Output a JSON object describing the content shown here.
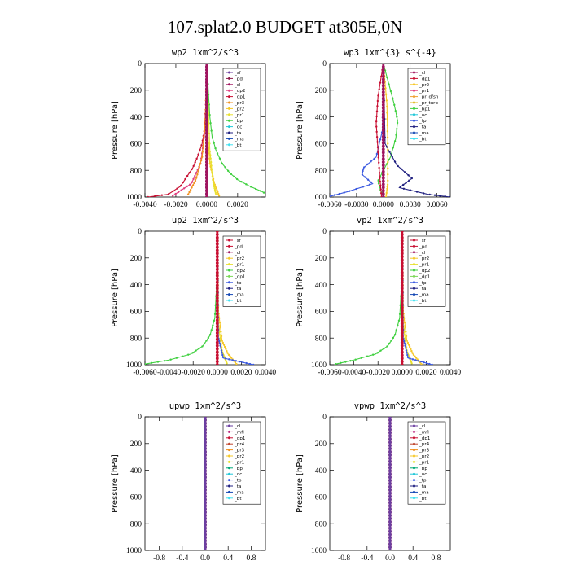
{
  "figure_title": "107.splat2.0  BUDGET at305E,0N",
  "colors": {
    "sf": "#6b3fa0",
    "pd": "#8b1a4a",
    "cl": "#a0145f",
    "dp2": "#e04080",
    "dp1": "#c80f32",
    "pr3": "#f09020",
    "pr2": "#f6c828",
    "pr1": "#e8e030",
    "bp": "#00a878",
    "bp1": "#7cd858",
    "oc": "#20c8d8",
    "tp": "#3c5ae0",
    "ta": "#202080",
    "ma": "#1448b4",
    "bt": "#40e0f0",
    "mfl": "#b8207a",
    "pr4": "#c04830",
    "dp2g": "#40d040",
    "pr_dfsn": "#f0a030",
    "pr_turb": "#e0b820"
  },
  "chart_data": [
    {
      "id": "wp2",
      "type": "line",
      "title": "wp2  1xm^2/s^3",
      "ylabel": "Pressure [hPa]",
      "xlim": [
        -0.004,
        0.0038
      ],
      "ylim": [
        1000,
        0
      ],
      "xticks": [
        -0.004,
        -0.002,
        0.0,
        0.002
      ],
      "xtick_labels": [
        "-0.0040",
        "-0.0020",
        "0.0000",
        "0.0020"
      ],
      "yticks": [
        0,
        200,
        400,
        600,
        800,
        1000
      ],
      "ytick_labels": [
        "0",
        "200",
        "400",
        "600",
        "800",
        "1000"
      ],
      "legend": [
        "_sf",
        "_pd",
        "_cl",
        "_dp2",
        "_dp1",
        "_pr3",
        "_pr2",
        "_pr1",
        "_bp",
        "_oc",
        "_ta",
        "_ma",
        "_bt"
      ],
      "legend_colors": [
        "sf",
        "pd",
        "cl",
        "dp2",
        "dp1",
        "pr3",
        "pr2",
        "pr1",
        "dp2g",
        "oc",
        "ta",
        "ma",
        "bt"
      ],
      "series": [
        {
          "name": "_bp",
          "color": "dp2g",
          "points": [
            [
              0.0,
              0
            ],
            [
              0.0001,
              200
            ],
            [
              0.0002,
              400
            ],
            [
              0.00035,
              550
            ],
            [
              0.0006,
              650
            ],
            [
              0.001,
              750
            ],
            [
              0.0015,
              820
            ],
            [
              0.002,
              870
            ],
            [
              0.0028,
              920
            ],
            [
              0.0036,
              960
            ],
            [
              0.004,
              990
            ]
          ]
        },
        {
          "name": "_dp1",
          "color": "dp1",
          "points": [
            [
              0.0,
              0
            ],
            [
              -5e-05,
              300
            ],
            [
              -0.00015,
              500
            ],
            [
              -0.0003,
              600
            ],
            [
              -0.0006,
              700
            ],
            [
              -0.0009,
              780
            ],
            [
              -0.0013,
              850
            ],
            [
              -0.0017,
              920
            ],
            [
              -0.0025,
              980
            ],
            [
              -0.0038,
              1000
            ]
          ]
        },
        {
          "name": "_dp2",
          "color": "dp2",
          "points": [
            [
              0.0,
              0
            ],
            [
              -0.0001,
              500
            ],
            [
              -0.0004,
              750
            ],
            [
              -0.001,
              900
            ],
            [
              -0.0022,
              990
            ]
          ]
        },
        {
          "name": "_pr3",
          "color": "pr3",
          "points": [
            [
              0.0,
              0
            ],
            [
              -0.0001,
              450
            ],
            [
              -0.0003,
              700
            ],
            [
              -0.0007,
              870
            ],
            [
              -0.0012,
              980
            ]
          ]
        },
        {
          "name": "_pr2",
          "color": "pr2",
          "points": [
            [
              0.0,
              0
            ],
            [
              5e-05,
              500
            ],
            [
              0.0002,
              750
            ],
            [
              0.0005,
              900
            ],
            [
              0.0008,
              990
            ]
          ]
        },
        {
          "name": "_pr1",
          "color": "pr1",
          "points": [
            [
              0.0,
              0
            ],
            [
              0.0002,
              650
            ],
            [
              0.0004,
              880
            ],
            [
              0.0006,
              980
            ]
          ]
        },
        {
          "name": "_sf",
          "color": "sf",
          "points": [
            [
              0.0,
              0
            ],
            [
              0.0,
              1000
            ]
          ]
        },
        {
          "name": "_cl",
          "color": "cl",
          "points": [
            [
              0.0,
              0
            ],
            [
              0.0,
              1000
            ]
          ]
        }
      ]
    },
    {
      "id": "wp3",
      "type": "line",
      "title": "wp3  1xm^{3} s^{-4}",
      "ylabel": "Pressure [hPa]",
      "xlim": [
        -0.006,
        0.0075
      ],
      "ylim": [
        1000,
        0
      ],
      "xticks": [
        -0.006,
        -0.003,
        0.0,
        0.003,
        0.006
      ],
      "xtick_labels": [
        "-0.0060",
        "-0.0030",
        "0.0000",
        "0.0030",
        "0.0060"
      ],
      "yticks": [
        0,
        200,
        400,
        600,
        800,
        1000
      ],
      "ytick_labels": [
        "0",
        "200",
        "400",
        "600",
        "800",
        "1000"
      ],
      "legend": [
        "_cl",
        "_dp1",
        "_pr2",
        "_pr1",
        "_pr_dfsn",
        "_pr_turb",
        "_bp1",
        "_oc",
        "_tp",
        "_ta",
        "_ma",
        "_bt"
      ],
      "legend_colors": [
        "cl",
        "dp1",
        "pr2",
        "dp2",
        "pr_dfsn",
        "pr_turb",
        "dp2g",
        "oc",
        "tp",
        "ta",
        "ma",
        "bt"
      ],
      "series": [
        {
          "name": "_bp1",
          "color": "dp2g",
          "points": [
            [
              0.0,
              0
            ],
            [
              0.0006,
              150
            ],
            [
              0.0012,
              300
            ],
            [
              0.0016,
              430
            ],
            [
              0.0014,
              560
            ],
            [
              0.0008,
              700
            ],
            [
              0.0,
              800
            ],
            [
              -0.0006,
              880
            ],
            [
              -0.0003,
              950
            ],
            [
              0.0,
              1000
            ]
          ]
        },
        {
          "name": "_tp",
          "color": "tp",
          "points": [
            [
              0.0,
              0
            ],
            [
              -0.0001,
              500
            ],
            [
              -0.0008,
              700
            ],
            [
              -0.0022,
              780
            ],
            [
              -0.0024,
              830
            ],
            [
              -0.0012,
              900
            ],
            [
              -0.004,
              960
            ],
            [
              -0.006,
              995
            ]
          ]
        },
        {
          "name": "_ta",
          "color": "ta",
          "points": [
            [
              0.0,
              0
            ],
            [
              0.0002,
              600
            ],
            [
              0.0015,
              760
            ],
            [
              0.0032,
              860
            ],
            [
              0.0018,
              930
            ],
            [
              0.005,
              980
            ],
            [
              0.0075,
              1000
            ]
          ]
        },
        {
          "name": "_dp1",
          "color": "dp1",
          "points": [
            [
              0.0,
              0
            ],
            [
              -0.0006,
              250
            ],
            [
              -0.0008,
              450
            ],
            [
              -0.0006,
              650
            ],
            [
              -0.0004,
              850
            ],
            [
              -0.0002,
              1000
            ]
          ]
        },
        {
          "name": "_pr2",
          "color": "pr2",
          "points": [
            [
              0.0,
              0
            ],
            [
              0.0004,
              300
            ],
            [
              0.0005,
              600
            ],
            [
              0.0005,
              900
            ],
            [
              0.0003,
              1000
            ]
          ]
        },
        {
          "name": "_cl",
          "color": "cl",
          "points": [
            [
              0.0,
              0
            ],
            [
              0.0,
              1000
            ]
          ]
        }
      ]
    },
    {
      "id": "up2",
      "type": "line",
      "title": "up2  1xm^2/s^3",
      "ylabel": "Pressure [hPa]",
      "xlim": [
        -0.006,
        0.004
      ],
      "ylim": [
        1000,
        0
      ],
      "xticks": [
        -0.006,
        -0.004,
        -0.002,
        0.0,
        0.002,
        0.004
      ],
      "xtick_labels": [
        "-0.0060",
        "-0.0040",
        "-0.0020",
        "0.0000",
        "0.0020",
        "0.0040"
      ],
      "yticks": [
        0,
        200,
        400,
        600,
        800,
        1000
      ],
      "ytick_labels": [
        "0",
        "200",
        "400",
        "600",
        "800",
        "1000"
      ],
      "legend": [
        "_sf",
        "_pd",
        "_cl",
        "_pr2",
        "_pr1",
        "_dp2",
        "_dp1",
        "_tp",
        "_ta",
        "_ma",
        "_bt"
      ],
      "legend_colors": [
        "dp1",
        "dp1",
        "cl",
        "pr2",
        "pr1",
        "dp2g",
        "bp1",
        "tp",
        "ta",
        "ma",
        "bt"
      ],
      "series": [
        {
          "name": "_dp2",
          "color": "dp2g",
          "points": [
            [
              0.0,
              0
            ],
            [
              -5e-05,
              400
            ],
            [
              -0.0002,
              650
            ],
            [
              -0.0006,
              780
            ],
            [
              -0.0012,
              860
            ],
            [
              -0.0022,
              920
            ],
            [
              -0.004,
              965
            ],
            [
              -0.006,
              995
            ]
          ]
        },
        {
          "name": "_pr2",
          "color": "pr2",
          "points": [
            [
              0.0,
              0
            ],
            [
              0.0001,
              600
            ],
            [
              0.0004,
              820
            ],
            [
              0.0009,
              920
            ],
            [
              0.0016,
              995
            ]
          ]
        },
        {
          "name": "_pr1",
          "color": "pr1",
          "points": [
            [
              0.0,
              0
            ],
            [
              0.0001,
              700
            ],
            [
              0.0004,
              900
            ],
            [
              0.0008,
              990
            ]
          ]
        },
        {
          "name": "_tp",
          "color": "tp",
          "points": [
            [
              0.0,
              0
            ],
            [
              0.0001,
              800
            ],
            [
              0.0005,
              950
            ],
            [
              0.003,
              1000
            ]
          ]
        },
        {
          "name": "_sf",
          "color": "dp1",
          "points": [
            [
              0.0,
              0
            ],
            [
              0.0,
              1000
            ]
          ]
        }
      ]
    },
    {
      "id": "vp2",
      "type": "line",
      "title": "vp2  1xm^2/s^3",
      "ylabel": "Pressure [hPa]",
      "xlim": [
        -0.006,
        0.004
      ],
      "ylim": [
        1000,
        0
      ],
      "xticks": [
        -0.006,
        -0.004,
        -0.002,
        0.0,
        0.002,
        0.004
      ],
      "xtick_labels": [
        "-0.0060",
        "-0.0040",
        "-0.0020",
        "0.0000",
        "0.0020",
        "0.0040"
      ],
      "yticks": [
        0,
        200,
        400,
        600,
        800,
        1000
      ],
      "ytick_labels": [
        "0",
        "200",
        "400",
        "600",
        "800",
        "1000"
      ],
      "legend": [
        "_sf",
        "_pd",
        "_cl",
        "_pr2",
        "_pr1",
        "_dp2",
        "_dp1",
        "_tp",
        "_ta",
        "_ma",
        "_bt"
      ],
      "legend_colors": [
        "dp1",
        "dp1",
        "cl",
        "pr2",
        "pr1",
        "dp2g",
        "bp1",
        "tp",
        "ta",
        "ma",
        "bt"
      ],
      "series": [
        {
          "name": "_dp2",
          "color": "dp2g",
          "points": [
            [
              0.0,
              0
            ],
            [
              -5e-05,
              400
            ],
            [
              -0.0002,
              650
            ],
            [
              -0.0006,
              780
            ],
            [
              -0.0012,
              860
            ],
            [
              -0.0022,
              920
            ],
            [
              -0.004,
              965
            ],
            [
              -0.0055,
              995
            ]
          ]
        },
        {
          "name": "_pr2",
          "color": "pr2",
          "points": [
            [
              0.0,
              0
            ],
            [
              0.0001,
              600
            ],
            [
              0.0004,
              820
            ],
            [
              0.0009,
              920
            ],
            [
              0.0016,
              995
            ]
          ]
        },
        {
          "name": "_pr1",
          "color": "pr1",
          "points": [
            [
              0.0,
              0
            ],
            [
              0.0001,
              700
            ],
            [
              0.0004,
              900
            ],
            [
              0.0008,
              990
            ]
          ]
        },
        {
          "name": "_tp",
          "color": "tp",
          "points": [
            [
              0.0,
              0
            ],
            [
              0.0001,
              800
            ],
            [
              0.0005,
              950
            ],
            [
              0.0025,
              1000
            ]
          ]
        },
        {
          "name": "_sf",
          "color": "dp1",
          "points": [
            [
              0.0,
              0
            ],
            [
              0.0,
              1000
            ]
          ]
        }
      ]
    },
    {
      "id": "upwp",
      "type": "line",
      "title": "upwp  1xm^2/s^3",
      "ylabel": "Pressure [hPa]",
      "xlim": [
        -1.05,
        1.05
      ],
      "ylim": [
        1000,
        0
      ],
      "xticks": [
        -0.8,
        -0.4,
        0.0,
        0.4,
        0.8
      ],
      "xtick_labels": [
        "-0.8",
        "-0.4",
        "0.0",
        "0.4",
        "0.8"
      ],
      "yticks": [
        0,
        200,
        400,
        600,
        800,
        1000
      ],
      "ytick_labels": [
        "0",
        "200",
        "400",
        "600",
        "800",
        "1000"
      ],
      "legend": [
        "_cl",
        "_mfl",
        "_dp1",
        "_pr4",
        "_pr3",
        "_pr2",
        "_pr1",
        "_bp",
        "_oc",
        "_tp",
        "_ta",
        "_ma",
        "_bt"
      ],
      "legend_colors": [
        "sf",
        "mfl",
        "dp1",
        "pr4",
        "pr3",
        "pr2",
        "pr1",
        "bp",
        "oc",
        "tp",
        "ta",
        "ma",
        "bt"
      ],
      "series": [
        {
          "name": "_dp1",
          "color": "dp1",
          "points": [
            [
              0.0,
              0
            ],
            [
              0.0,
              1000
            ]
          ]
        },
        {
          "name": "_cl",
          "color": "sf",
          "points": [
            [
              0.0,
              0
            ],
            [
              0.0,
              1000
            ]
          ]
        }
      ]
    },
    {
      "id": "vpwp",
      "type": "line",
      "title": "vpwp  1xm^2/s^3",
      "ylabel": "Pressure [hPa]",
      "xlim": [
        -1.05,
        1.05
      ],
      "ylim": [
        1000,
        0
      ],
      "xticks": [
        -0.8,
        -0.4,
        0.0,
        0.4,
        0.8
      ],
      "xtick_labels": [
        "-0.8",
        "-0.4",
        "0.0",
        "0.4",
        "0.8"
      ],
      "yticks": [
        0,
        200,
        400,
        600,
        800,
        1000
      ],
      "ytick_labels": [
        "0",
        "200",
        "400",
        "600",
        "800",
        "1000"
      ],
      "legend": [
        "_cl",
        "_mfl",
        "_dp1",
        "_pr4",
        "_pr3",
        "_pr2",
        "_pr1",
        "_bp",
        "_oc",
        "_tp",
        "_ta",
        "_ma",
        "_bt"
      ],
      "legend_colors": [
        "sf",
        "mfl",
        "dp1",
        "pr4",
        "pr3",
        "pr2",
        "pr1",
        "bp",
        "oc",
        "tp",
        "ta",
        "ma",
        "bt"
      ],
      "series": [
        {
          "name": "_dp1",
          "color": "dp1",
          "points": [
            [
              0.0,
              0
            ],
            [
              0.0,
              1000
            ]
          ]
        },
        {
          "name": "_cl",
          "color": "sf",
          "points": [
            [
              0.0,
              0
            ],
            [
              0.0,
              1000
            ]
          ]
        }
      ]
    }
  ]
}
